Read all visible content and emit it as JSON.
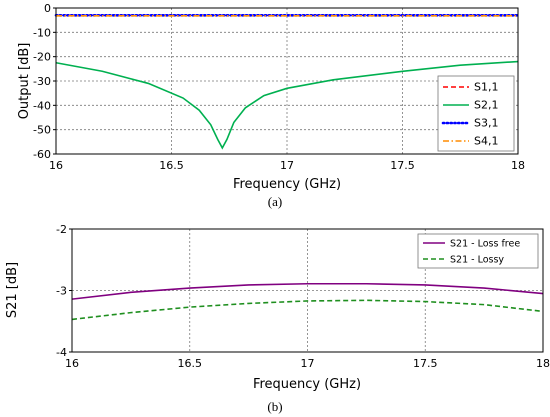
{
  "chart_data": [
    {
      "type": "line",
      "caption": "(a)",
      "xlabel": "Frequency (GHz)",
      "ylabel": "Output [dB]",
      "xlim": [
        16,
        18
      ],
      "ylim": [
        -60,
        0
      ],
      "xticks": [
        "16",
        "16.5",
        "17",
        "17.5",
        "18"
      ],
      "yticks": [
        "0",
        "-10",
        "-20",
        "-30",
        "-40",
        "-50",
        "-60"
      ],
      "grid": true,
      "legend_position": "bottom-right",
      "series": [
        {
          "name": "S1,1",
          "color": "#ff0000",
          "style": "dashed",
          "x": [
            16,
            16.25,
            16.5,
            16.75,
            17,
            17.25,
            17.5,
            17.75,
            18
          ],
          "y": [
            -3,
            -3,
            -3,
            -3,
            -3,
            -3,
            -3,
            -3,
            -3
          ]
        },
        {
          "name": "S2,1",
          "color": "#00b050",
          "style": "solid",
          "x": [
            16,
            16.2,
            16.4,
            16.55,
            16.62,
            16.67,
            16.7,
            16.72,
            16.74,
            16.77,
            16.82,
            16.9,
            17,
            17.2,
            17.5,
            17.75,
            18
          ],
          "y": [
            -22.5,
            -26,
            -31,
            -37,
            -42,
            -48,
            -54,
            -57.5,
            -54,
            -47,
            -41,
            -36,
            -33,
            -29.5,
            -26,
            -23.5,
            -22
          ]
        },
        {
          "name": "S3,1",
          "color": "#0000ff",
          "style": "dotted",
          "x": [
            16,
            16.25,
            16.5,
            16.75,
            17,
            17.25,
            17.5,
            17.75,
            18
          ],
          "y": [
            -3,
            -3,
            -3,
            -3,
            -3,
            -3,
            -3,
            -3,
            -3
          ]
        },
        {
          "name": "S4,1",
          "color": "#ff8c00",
          "style": "dashdot",
          "x": [
            16,
            16.25,
            16.5,
            16.75,
            17,
            17.25,
            17.5,
            17.75,
            18
          ],
          "y": [
            -3.2,
            -3.2,
            -3.2,
            -3.2,
            -3.2,
            -3.2,
            -3.2,
            -3.2,
            -3.2
          ]
        }
      ]
    },
    {
      "type": "line",
      "caption": "(b)",
      "xlabel": "Frequency (GHz)",
      "ylabel": "S21 [dB]",
      "xlim": [
        16,
        18
      ],
      "ylim": [
        -4,
        -2
      ],
      "xticks": [
        "16",
        "16.5",
        "17",
        "17.5",
        "18"
      ],
      "yticks": [
        "-2",
        "-3",
        "-4"
      ],
      "grid": true,
      "legend_position": "top-right",
      "series": [
        {
          "name": "S21 - Loss free",
          "color": "#800080",
          "style": "solid",
          "x": [
            16,
            16.25,
            16.5,
            16.75,
            17,
            17.25,
            17.5,
            17.75,
            18
          ],
          "y": [
            -3.14,
            -3.03,
            -2.96,
            -2.91,
            -2.89,
            -2.89,
            -2.91,
            -2.96,
            -3.05
          ]
        },
        {
          "name": "S21 - Lossy",
          "color": "#1f8f1f",
          "style": "dashed",
          "x": [
            16,
            16.25,
            16.5,
            16.75,
            17,
            17.25,
            17.5,
            17.75,
            18
          ],
          "y": [
            -3.47,
            -3.36,
            -3.27,
            -3.21,
            -3.17,
            -3.16,
            -3.18,
            -3.23,
            -3.34
          ]
        }
      ]
    }
  ]
}
